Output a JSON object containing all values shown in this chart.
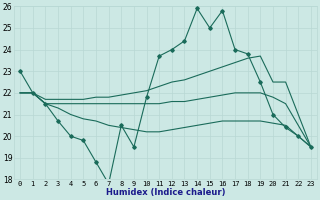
{
  "xlabel": "Humidex (Indice chaleur)",
  "bg_color": "#cce8e4",
  "grid_color": "#b8d8d4",
  "line_color": "#1a6b5a",
  "ylim": [
    18,
    26
  ],
  "yticks": [
    18,
    19,
    20,
    21,
    22,
    23,
    24,
    25,
    26
  ],
  "xlim": [
    -0.5,
    23.5
  ],
  "xlabel_color": "#1a1a8c",
  "main_y": [
    23,
    22,
    21.5,
    20.7,
    20.0,
    19.8,
    18.8,
    17.8,
    20.5,
    19.5,
    21.8,
    23.7,
    24.0,
    24.4,
    25.9,
    25.0,
    25.8,
    24.0,
    23.8,
    22.5,
    21.0,
    20.4,
    20.0,
    19.5
  ],
  "upper_y": [
    22.0,
    22.0,
    21.7,
    21.7,
    21.7,
    21.7,
    21.8,
    21.8,
    21.9,
    22.0,
    22.1,
    22.3,
    22.5,
    22.6,
    22.8,
    23.0,
    23.2,
    23.4,
    23.6,
    23.7,
    22.5,
    22.5,
    21.0,
    19.5
  ],
  "lower_y": [
    22.0,
    22.0,
    21.5,
    21.3,
    21.0,
    20.8,
    20.7,
    20.5,
    20.4,
    20.3,
    20.2,
    20.2,
    20.3,
    20.4,
    20.5,
    20.6,
    20.7,
    20.7,
    20.7,
    20.7,
    20.6,
    20.5,
    20.0,
    19.5
  ],
  "flat_y": [
    22.0,
    22.0,
    21.5,
    21.5,
    21.5,
    21.5,
    21.5,
    21.5,
    21.5,
    21.5,
    21.5,
    21.5,
    21.6,
    21.6,
    21.7,
    21.8,
    21.9,
    22.0,
    22.0,
    22.0,
    21.8,
    21.5,
    20.5,
    19.5
  ]
}
